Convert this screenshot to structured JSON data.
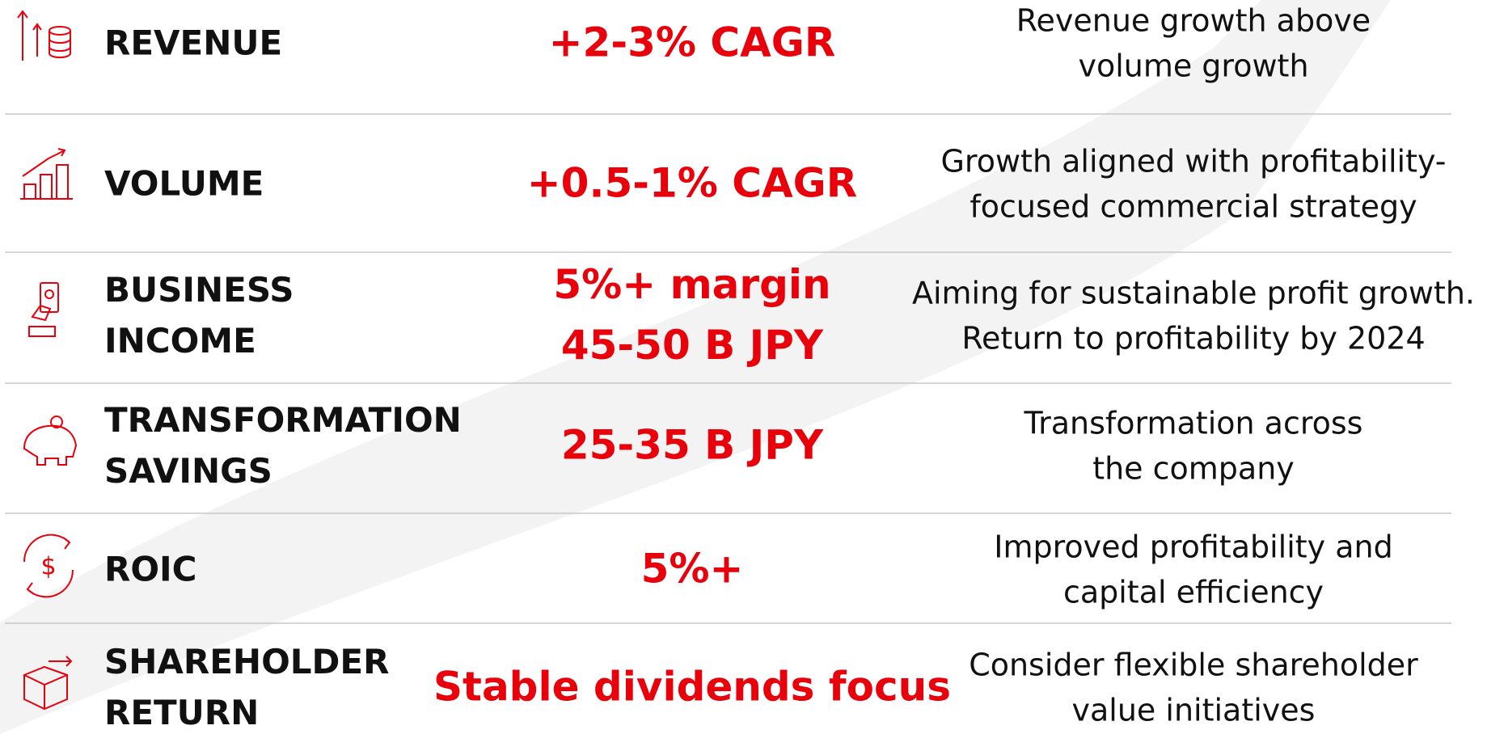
{
  "rows": [
    {
      "label": [
        "REVENUE"
      ],
      "target": [
        "+2-3% CAGR"
      ],
      "description": [
        "Revenue growth above",
        "volume growth"
      ]
    },
    {
      "label": [
        "VOLUME"
      ],
      "target": [
        "+0.5-1% CAGR"
      ],
      "description": [
        "Growth aligned with profitability-",
        "focused commercial strategy"
      ]
    },
    {
      "label": [
        "BUSINESS",
        "INCOME"
      ],
      "target": [
        "5%+ margin",
        "45-50 B JPY"
      ],
      "description": [
        "Aiming for sustainable profit growth.",
        "Return to profitability by 2024"
      ]
    },
    {
      "label": [
        "TRANSFORMATION",
        "SAVINGS"
      ],
      "target": [
        "25-35 B JPY"
      ],
      "description": [
        "Transformation across",
        "the company"
      ]
    },
    {
      "label": [
        "ROIC"
      ],
      "target": [
        "5%+"
      ],
      "description": [
        "Improved profitability and",
        "capital efficiency"
      ]
    },
    {
      "label": [
        "SHAREHOLDER",
        "RETURN"
      ],
      "target": [
        "Stable dividends focus"
      ],
      "description": [
        "Consider flexible shareholder",
        "value initiatives"
      ]
    }
  ]
}
